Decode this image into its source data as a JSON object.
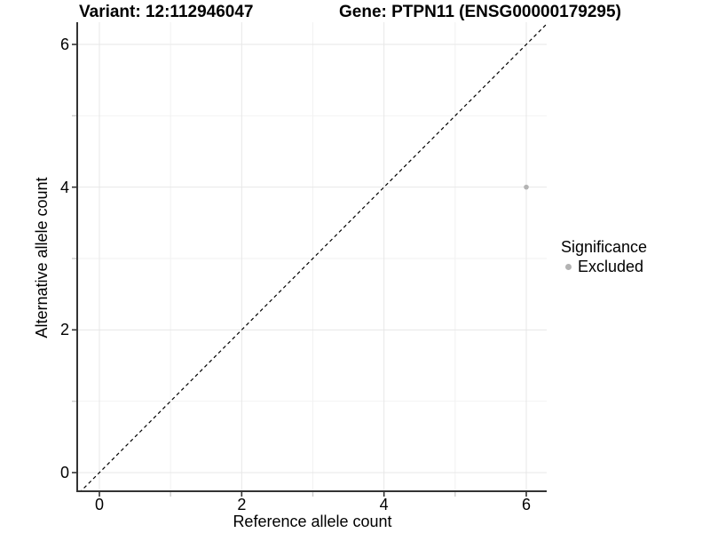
{
  "titles": {
    "variant": "Variant: 12:112946047",
    "gene": "Gene: PTPN11 (ENSG00000179295)"
  },
  "x_axis": {
    "label": "Reference allele count"
  },
  "y_axis": {
    "label": "Alternative allele count"
  },
  "legend": {
    "title": "Significance",
    "items": [
      {
        "label": "Excluded",
        "color": "#b3b3b3"
      }
    ]
  },
  "colors": {
    "axis": "#333333",
    "tick_major": "#333333",
    "tick_minor": "#cccccc",
    "grid_major": "#e7e7e7",
    "grid_minor": "#f2f2f2",
    "reference_line": "#000000",
    "point": "#b3b3b3",
    "background": "#ffffff"
  },
  "chart_data": {
    "type": "scatter",
    "title": "Variant: 12:112946047    Gene: PTPN11 (ENSG00000179295)",
    "xlabel": "Reference allele count",
    "ylabel": "Alternative allele count",
    "xlim": [
      -0.3,
      6.3
    ],
    "ylim": [
      -0.27,
      6.31
    ],
    "x_major_ticks": [
      0,
      2,
      4,
      6
    ],
    "x_minor_ticks": [
      1,
      3,
      5
    ],
    "y_major_ticks": [
      0,
      2,
      4,
      6
    ],
    "y_minor_ticks": [
      1,
      3,
      5
    ],
    "grid": "major+minor",
    "legend_position": "right",
    "series": [
      {
        "name": "Excluded",
        "color": "#b3b3b3",
        "points": [
          {
            "x": 6,
            "y": 4
          }
        ]
      }
    ],
    "reference_line": {
      "slope": 1,
      "intercept": 0,
      "style": "dashed",
      "color": "#000000"
    }
  }
}
